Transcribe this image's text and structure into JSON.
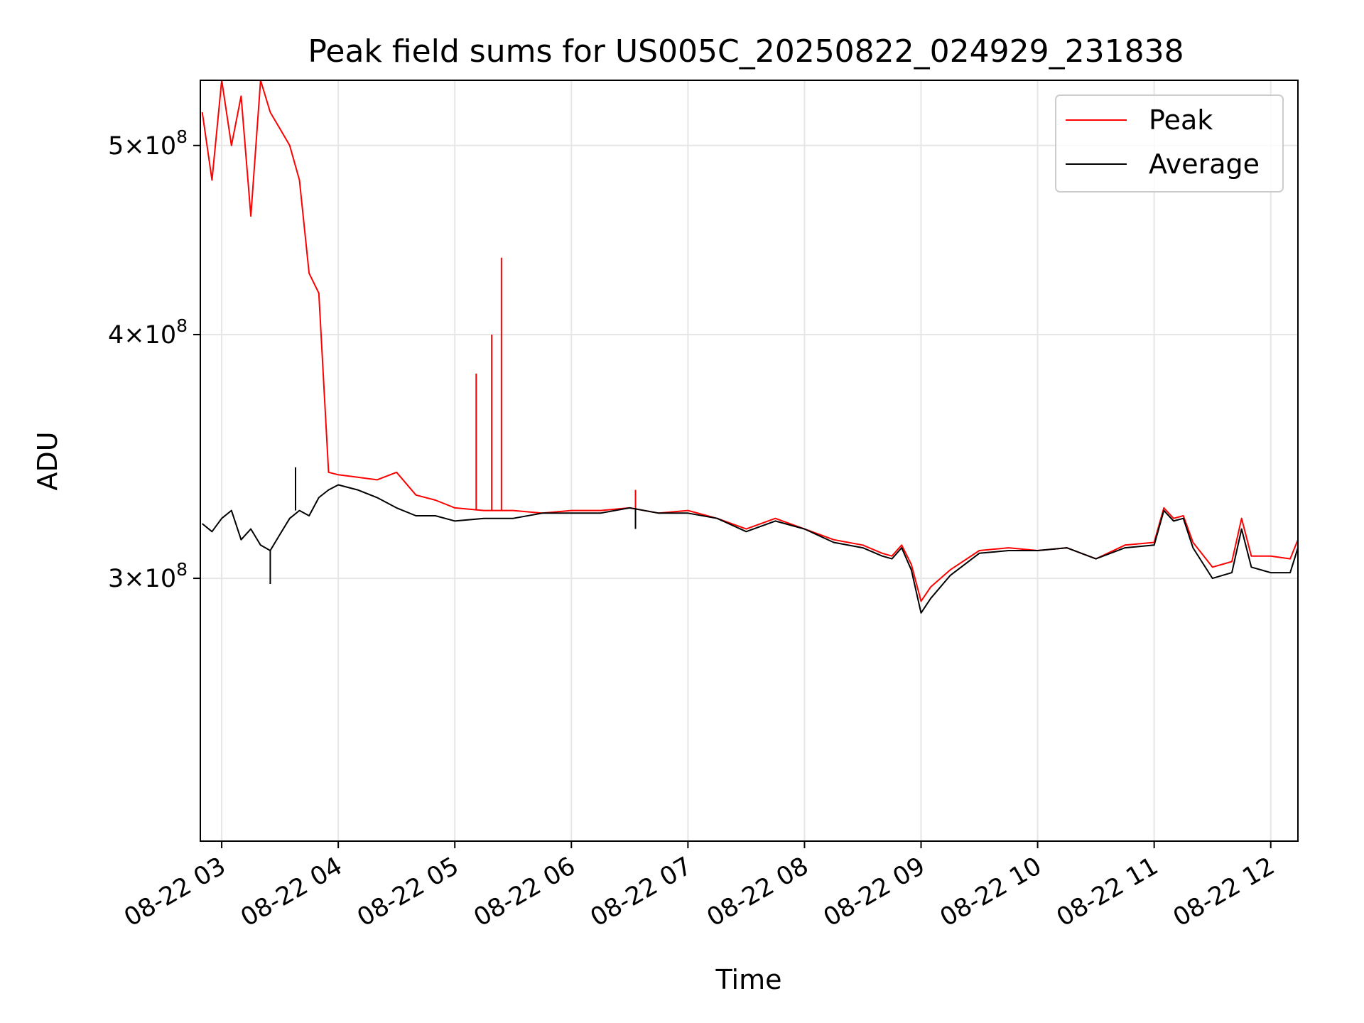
{
  "chart_data": {
    "type": "line",
    "title": "Peak field sums for US005C_20250822_024929_231838",
    "xlabel": "Time",
    "ylabel": "ADU",
    "x_ticks": [
      "08-22 03",
      "08-22 04",
      "08-22 05",
      "08-22 06",
      "08-22 07",
      "08-22 08",
      "08-22 09",
      "08-22 10",
      "08-22 11",
      "08-22 12"
    ],
    "xlim": [
      "08-22 02:49",
      "08-22 12:14"
    ],
    "y_scale": "log",
    "ylim": [
      220000000,
      540000000
    ],
    "y_ticks": [
      {
        "value": 300000000,
        "mantissa": "3",
        "base": "10",
        "exp": "8"
      },
      {
        "value": 400000000,
        "mantissa": "4",
        "base": "10",
        "exp": "8"
      },
      {
        "value": 500000000,
        "mantissa": "5",
        "base": "10",
        "exp": "8"
      }
    ],
    "grid": true,
    "legend_position": "top-right",
    "series": [
      {
        "name": "Peak",
        "color": "#ff0000",
        "x": [
          "02:50",
          "02:55",
          "03:00",
          "03:05",
          "03:10",
          "03:15",
          "03:20",
          "03:25",
          "03:30",
          "03:35",
          "03:40",
          "03:45",
          "03:50",
          "03:55",
          "04:00",
          "04:10",
          "04:20",
          "04:30",
          "04:40",
          "04:50",
          "05:00",
          "05:15",
          "05:30",
          "05:45",
          "06:00",
          "06:15",
          "06:30",
          "06:45",
          "07:00",
          "07:15",
          "07:30",
          "07:45",
          "08:00",
          "08:15",
          "08:30",
          "08:40",
          "08:45",
          "08:50",
          "08:55",
          "09:00",
          "09:05",
          "09:15",
          "09:30",
          "09:45",
          "10:00",
          "10:15",
          "10:30",
          "10:45",
          "11:00",
          "11:05",
          "11:10",
          "11:15",
          "11:20",
          "11:30",
          "11:40",
          "11:45",
          "11:50",
          "12:00",
          "12:10",
          "12:14"
        ],
        "y": [
          520000000,
          480000000,
          540000000,
          500000000,
          530000000,
          460000000,
          540000000,
          520000000,
          510000000,
          500000000,
          480000000,
          430000000,
          420000000,
          340000000,
          339000000,
          338000000,
          337000000,
          340000000,
          331000000,
          329000000,
          326000000,
          325000000,
          325000000,
          324000000,
          325000000,
          325000000,
          326000000,
          324000000,
          325000000,
          322000000,
          318000000,
          322000000,
          318000000,
          314000000,
          312000000,
          309000000,
          308000000,
          312000000,
          305000000,
          292000000,
          297000000,
          303000000,
          310000000,
          311000000,
          310000000,
          311000000,
          307000000,
          312000000,
          313000000,
          326000000,
          322000000,
          323000000,
          313000000,
          304000000,
          306000000,
          322000000,
          308000000,
          308000000,
          307000000,
          314000000
        ],
        "spikes": [
          {
            "x": "05:11",
            "y": 382000000
          },
          {
            "x": "05:19",
            "y": 400000000
          },
          {
            "x": "05:24",
            "y": 438000000
          },
          {
            "x": "06:33",
            "y": 333000000
          }
        ]
      },
      {
        "name": "Average",
        "color": "#000000",
        "x": [
          "02:50",
          "02:55",
          "03:00",
          "03:05",
          "03:10",
          "03:15",
          "03:20",
          "03:25",
          "03:30",
          "03:35",
          "03:40",
          "03:45",
          "03:50",
          "03:55",
          "04:00",
          "04:10",
          "04:20",
          "04:30",
          "04:40",
          "04:50",
          "05:00",
          "05:15",
          "05:30",
          "05:45",
          "06:00",
          "06:15",
          "06:30",
          "06:45",
          "07:00",
          "07:15",
          "07:30",
          "07:45",
          "08:00",
          "08:15",
          "08:30",
          "08:40",
          "08:45",
          "08:50",
          "08:55",
          "09:00",
          "09:05",
          "09:15",
          "09:30",
          "09:45",
          "10:00",
          "10:15",
          "10:30",
          "10:45",
          "11:00",
          "11:05",
          "11:10",
          "11:15",
          "11:20",
          "11:30",
          "11:40",
          "11:45",
          "11:50",
          "12:00",
          "12:10",
          "12:14"
        ],
        "y": [
          320000000,
          317000000,
          322000000,
          325000000,
          314000000,
          318000000,
          312000000,
          310000000,
          316000000,
          322000000,
          325000000,
          323000000,
          330000000,
          333000000,
          335000000,
          333000000,
          330000000,
          326000000,
          323000000,
          323000000,
          321000000,
          322000000,
          322000000,
          324000000,
          324000000,
          324000000,
          326000000,
          324000000,
          324000000,
          322000000,
          317000000,
          321000000,
          318000000,
          313000000,
          311000000,
          308000000,
          307000000,
          311000000,
          303000000,
          288000000,
          293000000,
          301000000,
          309000000,
          310000000,
          310000000,
          311000000,
          307000000,
          311000000,
          312000000,
          325000000,
          321000000,
          322000000,
          311000000,
          300000000,
          302000000,
          318000000,
          304000000,
          302000000,
          302000000,
          311000000
        ],
        "spikes": [
          {
            "x": "03:25",
            "y": 298000000
          },
          {
            "x": "03:38",
            "y": 342000000
          },
          {
            "x": "06:33",
            "y": 318000000
          }
        ]
      }
    ]
  }
}
